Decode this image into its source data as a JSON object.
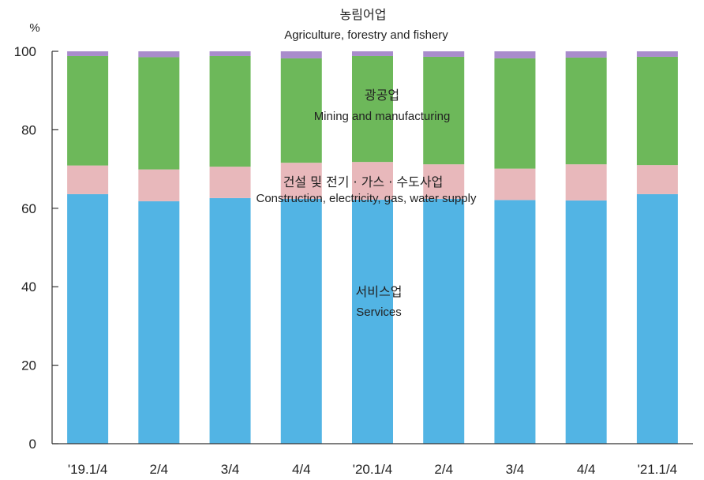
{
  "chart_data": {
    "type": "bar",
    "stacked": true,
    "ylabel": "%",
    "ylim": [
      0,
      100
    ],
    "yticks": [
      0,
      20,
      40,
      60,
      80,
      100
    ],
    "grid": false,
    "categories": [
      "'19.1/4",
      "2/4",
      "3/4",
      "4/4",
      "'20.1/4",
      "2/4",
      "3/4",
      "4/4",
      "'21.1/4"
    ],
    "series": [
      {
        "name_ko": "서비스업",
        "name_en": "Services",
        "color": "#52b4e4",
        "values": [
          63.6,
          61.8,
          62.6,
          62.4,
          62.2,
          62.4,
          62.1,
          62.0,
          63.6
        ]
      },
      {
        "name_ko": "건설 및 전기 · 가스 · 수도사업",
        "name_en": "Construction, electricity, gas, water supply",
        "color": "#e8b8bb",
        "values": [
          7.3,
          8.1,
          8.0,
          9.2,
          9.6,
          8.8,
          8.0,
          9.2,
          7.4
        ]
      },
      {
        "name_ko": "광공업",
        "name_en": "Mining and manufacturing",
        "color": "#6db85a",
        "values": [
          27.9,
          28.6,
          28.2,
          26.6,
          27.0,
          27.4,
          28.1,
          27.2,
          27.6
        ]
      },
      {
        "name_ko": "농림어업",
        "name_en": "Agriculture, forestry and fishery",
        "color": "#a98ccc",
        "values": [
          1.2,
          1.5,
          1.2,
          1.8,
          1.2,
          1.4,
          1.8,
          1.6,
          1.4
        ]
      }
    ]
  }
}
